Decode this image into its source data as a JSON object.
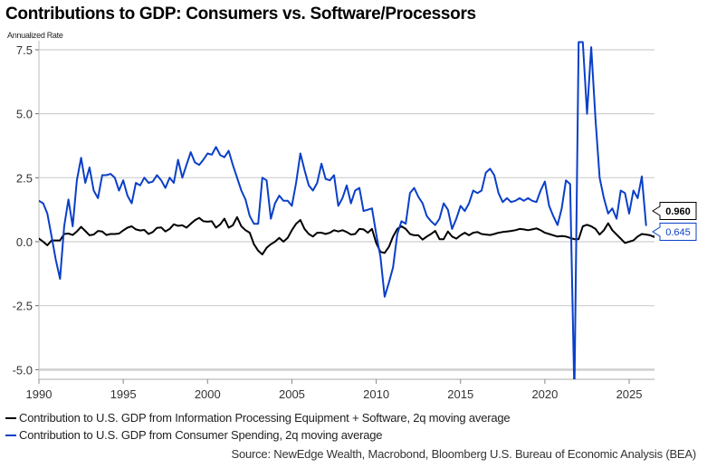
{
  "chart_data": {
    "type": "line",
    "title": "Contributions to GDP: Consumers vs. Software/Processors",
    "ylabel": "Annualized Rate",
    "xlabel": "",
    "xlim": [
      1990,
      2026.3
    ],
    "ylim": [
      -5.3,
      7.8
    ],
    "x_ticks": [
      1990,
      1995,
      2000,
      2005,
      2010,
      2015,
      2020,
      2025
    ],
    "x_tick_labels": [
      "1990",
      "1995",
      "2000",
      "2005",
      "2010",
      "2015",
      "2020",
      "2025"
    ],
    "y_ticks": [
      -5.0,
      -2.5,
      0.0,
      2.5,
      5.0,
      7.5
    ],
    "y_tick_labels": [
      "-5.0",
      "-2.5",
      "0.0",
      "2.5",
      "5.0",
      "7.5"
    ],
    "grid": true,
    "legend_position": "bottom-left",
    "x_start": 1990.0,
    "x_step": 0.25,
    "series": [
      {
        "name": "Contribution to U.S. GDP from Information Processing Equipment + Software, 2q moving average",
        "color": "#000000",
        "end_value_label": "0.960",
        "values": [
          0.12,
          0.0,
          -0.14,
          0.05,
          0.05,
          0.05,
          0.3,
          0.32,
          0.26,
          0.4,
          0.58,
          0.42,
          0.25,
          0.28,
          0.42,
          0.4,
          0.26,
          0.3,
          0.3,
          0.32,
          0.44,
          0.55,
          0.6,
          0.48,
          0.44,
          0.46,
          0.3,
          0.38,
          0.54,
          0.56,
          0.4,
          0.5,
          0.68,
          0.62,
          0.64,
          0.55,
          0.7,
          0.84,
          0.93,
          0.8,
          0.78,
          0.8,
          0.55,
          0.68,
          0.9,
          0.55,
          0.64,
          0.96,
          0.6,
          0.45,
          0.35,
          -0.1,
          -0.35,
          -0.5,
          -0.24,
          -0.1,
          0.0,
          0.15,
          0.0,
          0.15,
          0.45,
          0.7,
          0.85,
          0.5,
          0.3,
          0.2,
          0.35,
          0.35,
          0.3,
          0.35,
          0.45,
          0.4,
          0.45,
          0.38,
          0.28,
          0.3,
          0.5,
          0.48,
          0.35,
          0.5,
          -0.05,
          -0.4,
          -0.44,
          -0.2,
          0.2,
          0.5,
          0.6,
          0.5,
          0.3,
          0.25,
          0.25,
          0.08,
          0.2,
          0.3,
          0.42,
          0.1,
          0.1,
          0.4,
          0.2,
          0.12,
          0.25,
          0.35,
          0.25,
          0.35,
          0.38,
          0.3,
          0.28,
          0.26,
          0.3,
          0.35,
          0.38,
          0.4,
          0.42,
          0.45,
          0.5,
          0.48,
          0.45,
          0.48,
          0.52,
          0.45,
          0.35,
          0.3,
          0.25,
          0.2,
          0.22,
          0.2,
          0.15,
          0.1,
          0.1,
          0.6,
          0.66,
          0.6,
          0.5,
          0.28,
          0.45,
          0.72,
          0.45,
          0.28,
          0.12,
          -0.05,
          0.0,
          0.05,
          0.2,
          0.3,
          0.28,
          0.25,
          0.18,
          0.7,
          0.96
        ]
      },
      {
        "name": "Contribution to U.S. GDP from Consumer Spending, 2q moving average",
        "color": "#0a3fc8",
        "end_value_label": "0.645",
        "values": [
          1.6,
          1.5,
          1.1,
          0.2,
          -0.7,
          -1.45,
          0.6,
          1.65,
          0.6,
          2.4,
          3.28,
          2.3,
          2.9,
          2.0,
          1.7,
          2.6,
          2.6,
          2.65,
          2.5,
          2.0,
          2.4,
          1.8,
          1.5,
          2.3,
          2.2,
          2.5,
          2.3,
          2.35,
          2.6,
          2.4,
          2.1,
          2.5,
          2.3,
          3.2,
          2.5,
          3.0,
          3.5,
          3.1,
          3.0,
          3.2,
          3.45,
          3.4,
          3.7,
          3.38,
          3.3,
          3.55,
          3.0,
          2.5,
          2.0,
          1.65,
          1.0,
          0.7,
          0.7,
          2.5,
          2.4,
          0.9,
          1.5,
          1.8,
          1.6,
          1.6,
          1.4,
          2.3,
          3.45,
          2.8,
          2.2,
          2.0,
          2.3,
          3.05,
          2.45,
          2.4,
          2.6,
          1.4,
          1.7,
          2.2,
          1.5,
          2.0,
          2.1,
          1.2,
          1.25,
          1.3,
          0.3,
          -0.6,
          -2.15,
          -1.6,
          -1.0,
          0.3,
          0.8,
          0.7,
          1.9,
          2.1,
          1.75,
          1.5,
          1.0,
          0.8,
          0.65,
          0.9,
          1.5,
          1.25,
          0.5,
          0.9,
          1.4,
          1.2,
          1.5,
          2.0,
          1.9,
          2.0,
          2.7,
          2.85,
          2.6,
          1.9,
          1.55,
          1.7,
          1.55,
          1.6,
          1.7,
          1.6,
          1.7,
          1.6,
          1.55,
          2.0,
          2.35,
          1.4,
          1.0,
          0.65,
          1.3,
          2.4,
          2.25,
          -6.0,
          7.8,
          7.8,
          5.0,
          7.6,
          4.8,
          2.5,
          1.7,
          1.1,
          1.3,
          0.9,
          2.0,
          1.9,
          1.1,
          2.0,
          1.7,
          2.55,
          0.645
        ]
      }
    ]
  },
  "legend": {
    "items": [
      {
        "label": "Contribution to U.S. GDP from Information Processing Equipment + Software, 2q moving average",
        "color": "#000000"
      },
      {
        "label": "Contribution to U.S. GDP from Consumer Spending, 2q moving average",
        "color": "#0a3fc8"
      }
    ]
  },
  "source": "Source: NewEdge Wealth, Macrobond, Bloomberg U.S. Bureau of Economic Analysis (BEA)"
}
